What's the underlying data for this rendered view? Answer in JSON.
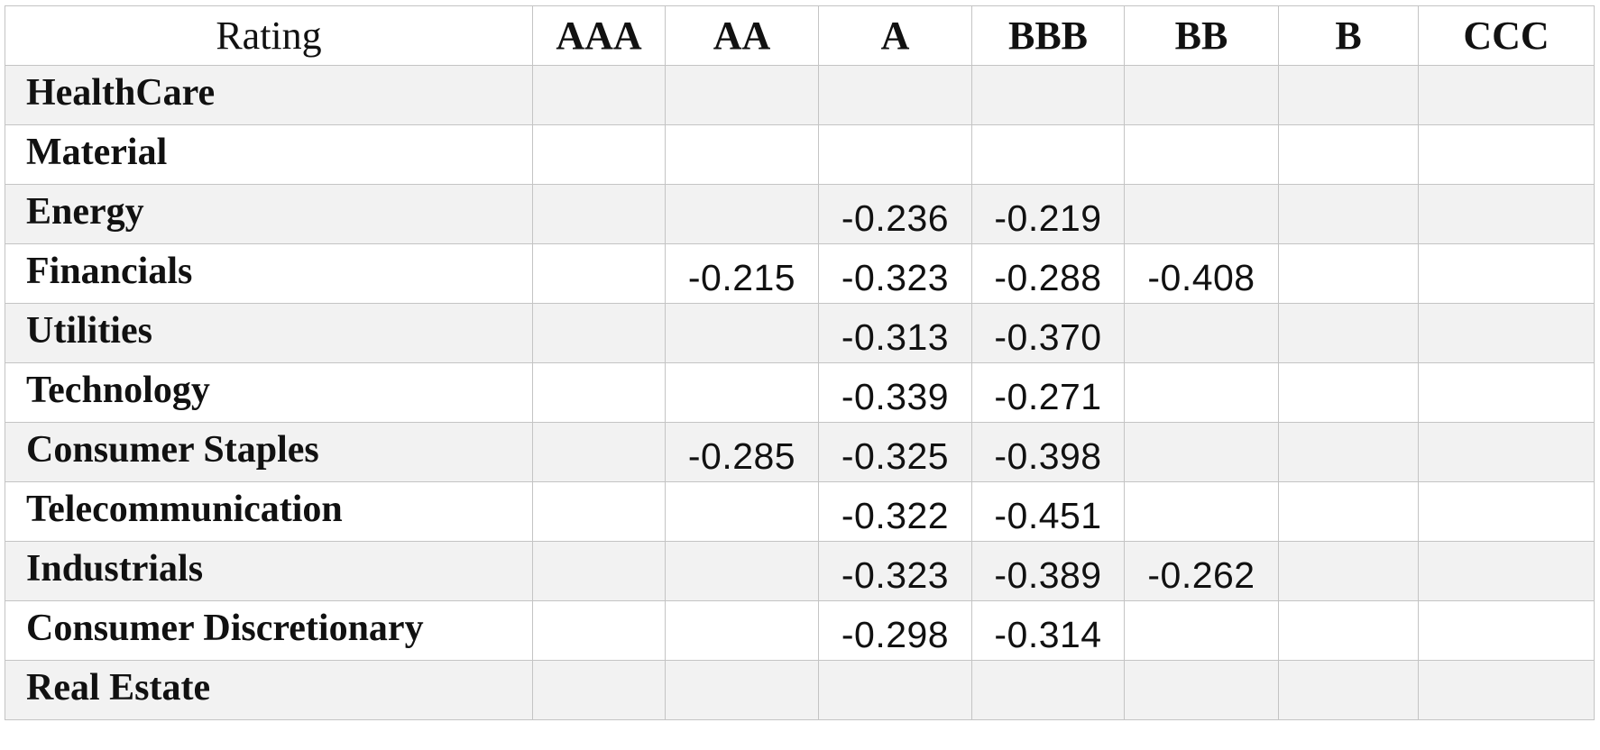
{
  "table": {
    "header": {
      "corner": "Rating",
      "columns": [
        "AAA",
        "AA",
        "A",
        "BBB",
        "BB",
        "B",
        "CCC"
      ]
    },
    "rows": [
      {
        "label": "HealthCare",
        "cells": [
          "",
          "",
          "",
          "",
          "",
          "",
          ""
        ]
      },
      {
        "label": "Material",
        "cells": [
          "",
          "",
          "",
          "",
          "",
          "",
          ""
        ]
      },
      {
        "label": "Energy",
        "cells": [
          "",
          "",
          "-0.236",
          "-0.219",
          "",
          "",
          ""
        ]
      },
      {
        "label": "Financials",
        "cells": [
          "",
          "-0.215",
          "-0.323",
          "-0.288",
          "-0.408",
          "",
          ""
        ]
      },
      {
        "label": "Utilities",
        "cells": [
          "",
          "",
          "-0.313",
          "-0.370",
          "",
          "",
          ""
        ]
      },
      {
        "label": "Technology",
        "cells": [
          "",
          "",
          "-0.339",
          "-0.271",
          "",
          "",
          ""
        ]
      },
      {
        "label": "Consumer Staples",
        "cells": [
          "",
          "-0.285",
          "-0.325",
          "-0.398",
          "",
          "",
          ""
        ]
      },
      {
        "label": "Telecommunication",
        "cells": [
          "",
          "",
          "-0.322",
          "-0.451",
          "",
          "",
          ""
        ]
      },
      {
        "label": "Industrials",
        "cells": [
          "",
          "",
          "-0.323",
          "-0.389",
          "-0.262",
          "",
          ""
        ]
      },
      {
        "label": "Consumer Discretionary",
        "cells": [
          "",
          "",
          "-0.298",
          "-0.314",
          "",
          "",
          ""
        ]
      },
      {
        "label": "Real Estate",
        "cells": [
          "",
          "",
          "",
          "",
          "",
          "",
          ""
        ]
      }
    ]
  }
}
